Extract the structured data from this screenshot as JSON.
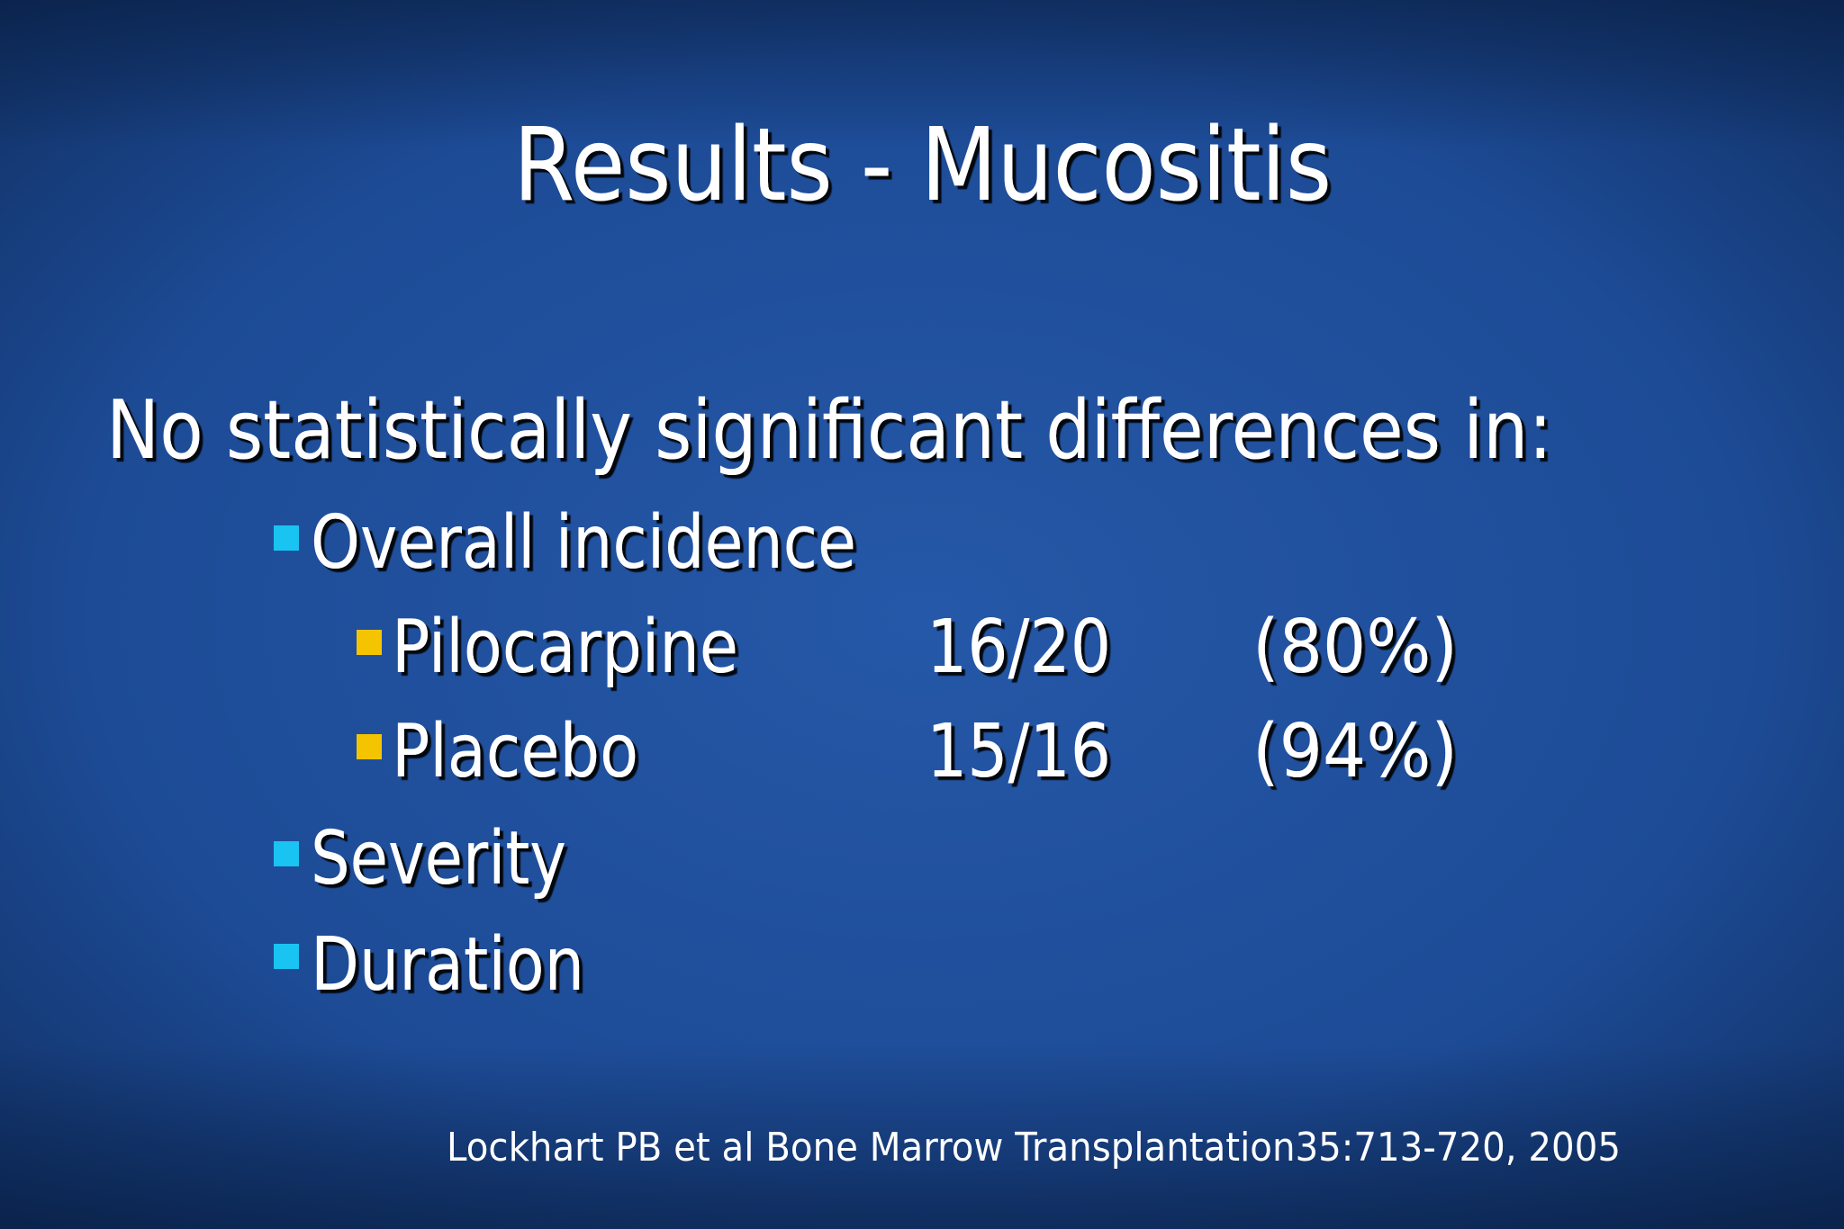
{
  "slide": {
    "title": "Results - Mucositis",
    "heading": "No statistically significant differences in:",
    "items": [
      {
        "text": "Overall incidence",
        "subitems": [
          {
            "label": "Pilocarpine",
            "count": "16/20",
            "percent": "(80%)"
          },
          {
            "label": "Placebo",
            "count": "15/16",
            "percent": "(94%)"
          }
        ]
      },
      {
        "text": "Severity"
      },
      {
        "text": "Duration"
      }
    ],
    "citation": "Lockhart PB et al Bone Marrow Transplantation35:713-720, 2005"
  }
}
